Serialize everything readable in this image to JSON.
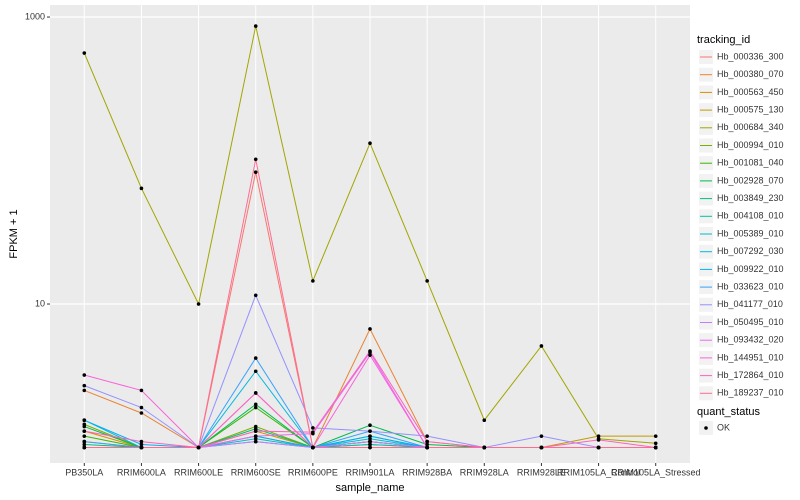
{
  "chart_data": {
    "type": "line",
    "x_label": "sample_name",
    "y_label": "FPKM + 1",
    "log_scale": true,
    "grid": true,
    "legend_title": "tracking_id",
    "point_legend_title": "quant_status",
    "point_legend_label": "OK",
    "categories": [
      "PB350LA",
      "RRIM600LA",
      "RRIM600LE",
      "RRIM600SE",
      "RRIM600PE",
      "RRIM901LA",
      "RRIM928BA",
      "RRIM928LA",
      "RRIM928LE",
      "RRIM105LA_Control",
      "RRIM105LA_Stressed"
    ],
    "ylim": [
      0.78,
      1213
    ],
    "yticks": [
      10,
      1000
    ],
    "series": [
      {
        "name": "Hb_000336_300",
        "color": "#F8766D",
        "values": [
          1,
          1,
          1,
          83,
          1,
          1,
          1,
          1,
          1,
          1,
          1
        ]
      },
      {
        "name": "Hb_000380_070",
        "color": "#EA8331",
        "values": [
          2.5,
          1.74,
          1,
          2.4,
          1,
          6.7,
          1.1,
          1,
          1,
          1,
          1
        ]
      },
      {
        "name": "Hb_000563_450",
        "color": "#D89000",
        "values": [
          1.3,
          1,
          1,
          1.3,
          1,
          1.1,
          1,
          1,
          1,
          1,
          1
        ]
      },
      {
        "name": "Hb_000575_130",
        "color": "#C09B00",
        "values": [
          1.1,
          1,
          1,
          1.2,
          1,
          1,
          1,
          1,
          1,
          1.2,
          1.2
        ]
      },
      {
        "name": "Hb_000684_340",
        "color": "#A3A500",
        "values": [
          561,
          64,
          10,
          865,
          14.5,
          132,
          14.5,
          1.55,
          5.1,
          1.15,
          1.07
        ]
      },
      {
        "name": "Hb_000994_010",
        "color": "#7CAE00",
        "values": [
          1.45,
          1,
          1,
          1.4,
          1,
          1.05,
          1,
          1,
          1,
          1,
          1
        ]
      },
      {
        "name": "Hb_001081_040",
        "color": "#39B600",
        "values": [
          1.2,
          1,
          1,
          1.9,
          1,
          1.1,
          1,
          1,
          1,
          1,
          1
        ]
      },
      {
        "name": "Hb_002928_070",
        "color": "#00BB4E",
        "values": [
          1.4,
          1,
          1,
          2.0,
          1,
          1.43,
          1.05,
          1,
          1,
          1,
          1
        ]
      },
      {
        "name": "Hb_003849_230",
        "color": "#00BF7D",
        "values": [
          1.05,
          1,
          1,
          1.35,
          1,
          1.2,
          1,
          1,
          1,
          1,
          1
        ]
      },
      {
        "name": "Hb_004108_010",
        "color": "#00C1A3",
        "values": [
          1,
          1,
          1,
          1.1,
          1,
          1.1,
          1,
          1,
          1,
          1,
          1
        ]
      },
      {
        "name": "Hb_005389_010",
        "color": "#00BFC4",
        "values": [
          1,
          1,
          1,
          1.15,
          1,
          1.05,
          1,
          1,
          1,
          1,
          1
        ]
      },
      {
        "name": "Hb_007292_030",
        "color": "#00BAE0",
        "values": [
          1.55,
          1,
          1,
          3.4,
          1,
          1.15,
          1,
          1,
          1,
          1,
          1
        ]
      },
      {
        "name": "Hb_009922_010",
        "color": "#00B0F6",
        "values": [
          1.55,
          1.05,
          1,
          1.2,
          1,
          1.2,
          1,
          1,
          1,
          1,
          1
        ]
      },
      {
        "name": "Hb_033623_010",
        "color": "#35A2FF",
        "values": [
          1.1,
          1,
          1,
          4.2,
          1,
          1.3,
          1,
          1,
          1,
          1,
          1
        ]
      },
      {
        "name": "Hb_041177_010",
        "color": "#9590FF",
        "values": [
          2.7,
          1.9,
          1,
          11.5,
          1.37,
          1.3,
          1.2,
          1,
          1.2,
          1,
          1
        ]
      },
      {
        "name": "Hb_050495_010",
        "color": "#C77CFF",
        "values": [
          1,
          1,
          1,
          1.1,
          1,
          1.1,
          1,
          1,
          1,
          1,
          1
        ]
      },
      {
        "name": "Hb_093432_020",
        "color": "#E76BF3",
        "values": [
          1,
          1,
          1,
          1.2,
          1.25,
          4.6,
          1,
          1,
          1,
          1,
          1
        ]
      },
      {
        "name": "Hb_144951_010",
        "color": "#FA62DB",
        "values": [
          3.2,
          2.5,
          1,
          2.4,
          1,
          4.4,
          1,
          1,
          1,
          1,
          1
        ]
      },
      {
        "name": "Hb_172864_010",
        "color": "#FF62BC",
        "values": [
          1.3,
          1.1,
          1,
          1.3,
          1.28,
          4.7,
          1.1,
          1,
          1,
          1.13,
          1
        ]
      },
      {
        "name": "Hb_189237_010",
        "color": "#FF6C91",
        "values": [
          1,
          1,
          1,
          102,
          1,
          1,
          1,
          1,
          1,
          1,
          1
        ]
      }
    ]
  }
}
